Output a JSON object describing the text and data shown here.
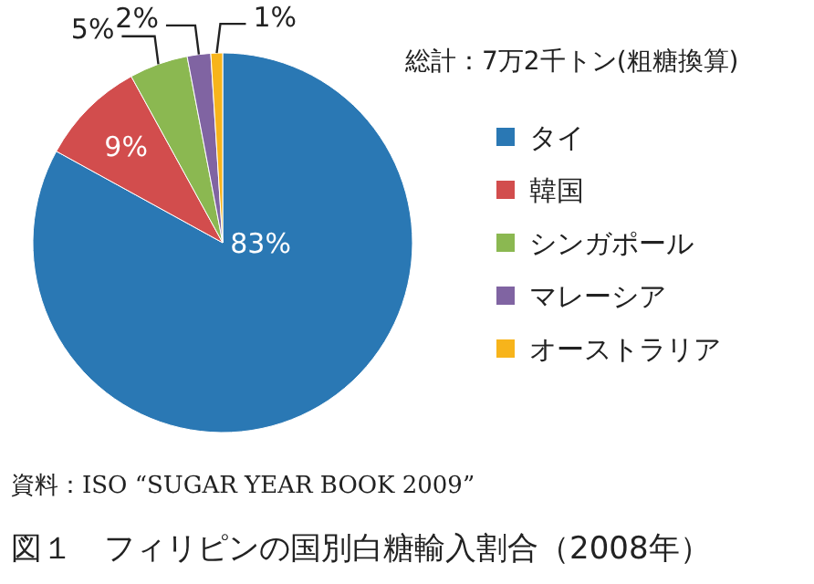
{
  "chart_data": {
    "type": "pie",
    "title": "図１　フィリピンの国別白糖輸入割合（2008年）",
    "legend_title": "総計：7万2千トン(粗糖換算)",
    "annotations": [
      "資料：ISO “SUGAR YEAR BOOK 2009”"
    ],
    "categories": [
      "タイ",
      "韓国",
      "シンガポール",
      "マレーシア",
      "オーストラリア"
    ],
    "values": [
      83,
      9,
      5,
      2,
      1
    ],
    "colors": [
      "#2a78b4",
      "#d24d4d",
      "#8bb851",
      "#8064a2",
      "#f7b41b"
    ],
    "value_labels": [
      "83%",
      "9%",
      "5%",
      "2%",
      "1%"
    ],
    "legend": "right"
  }
}
